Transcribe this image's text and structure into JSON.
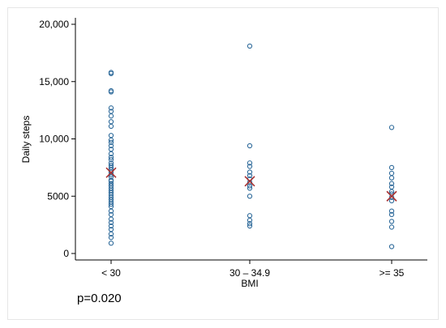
{
  "chart_data": {
    "type": "scatter",
    "title": "",
    "xlabel": "BMI",
    "ylabel": "Daily steps",
    "categories": [
      "< 30",
      "30 – 34.9",
      ">= 35"
    ],
    "ylim": [
      0,
      20000
    ],
    "yticks": [
      0,
      5000,
      10000,
      15000,
      20000
    ],
    "ytick_labels": [
      "0",
      "5000",
      "10,000",
      "15,000",
      "20,000"
    ],
    "grid": false,
    "legend": "none",
    "colors": {
      "points": "#2e6a9a",
      "mean_marker": "#a83232"
    },
    "series": [
      {
        "values": [
          15800,
          15700,
          14200,
          14100,
          12700,
          12400,
          12000,
          11500,
          11100,
          10300,
          9900,
          9700,
          9400,
          9100,
          8700,
          8400,
          8200,
          7900,
          7700,
          7500,
          7300,
          7100,
          6900,
          6700,
          6400,
          6300,
          6100,
          5900,
          5700,
          5500,
          5300,
          5100,
          4900,
          4700,
          4500,
          4300,
          4100,
          3700,
          3400,
          3000,
          2700,
          2400,
          2100,
          1700,
          1400,
          900
        ]
      },
      {
        "values": [
          18100,
          9400,
          7900,
          7600,
          7100,
          6800,
          6500,
          6200,
          5900,
          5700,
          5000,
          3300,
          2900,
          2600,
          2400
        ]
      },
      {
        "values": [
          11000,
          7500,
          7000,
          6600,
          6100,
          5800,
          5400,
          5200,
          4900,
          4600,
          3700,
          3400,
          2800,
          2300,
          600
        ]
      }
    ],
    "means": [
      7050,
      6300,
      5000
    ]
  },
  "annotations": {
    "p_value": "p=0.020"
  }
}
